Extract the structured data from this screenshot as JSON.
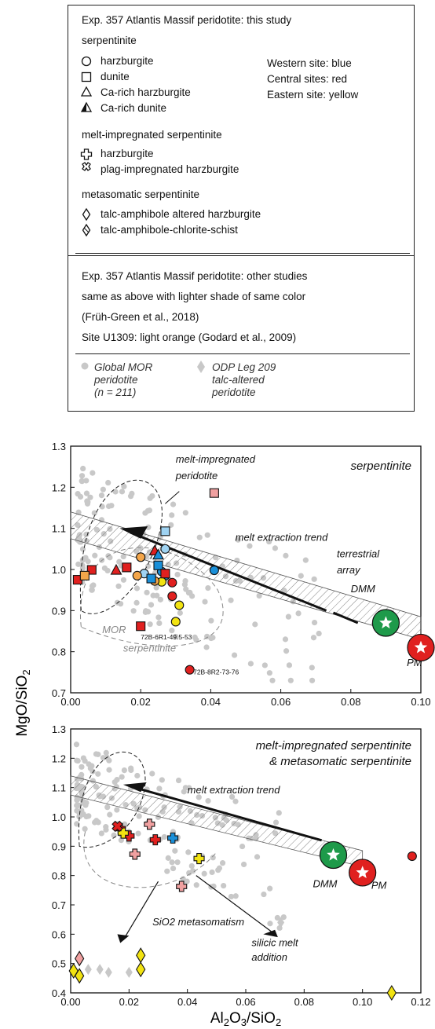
{
  "legend": {
    "title": "Exp. 357 Atlantis Massif peridotite: this study",
    "serp_header": "serpentinite",
    "serp_items": [
      "harzburgite",
      "dunite",
      "Ca-rich harzburgite",
      "Ca-rich dunite"
    ],
    "sites": [
      "Western site: blue",
      "Central sites: red",
      "Eastern site: yellow"
    ],
    "melt_header": "melt-impregnated serpentinite",
    "melt_items": [
      "harzburgite",
      "plag-impregnated harzburgite"
    ],
    "meta_header": "metasomatic serpentinite",
    "meta_items": [
      "talc-amphibole altered harzburgite",
      "talc-amphibole-chlorite-schist"
    ],
    "other_lines": [
      "Exp. 357 Atlantis Massif peridotite: other studies",
      "same as above with lighter shade of same color",
      "(Früh-Green et al., 2018)",
      "Site U1309: light orange (Godard et al., 2009)"
    ],
    "global_label": [
      "Global MOR",
      "peridotite",
      "(n = 211)"
    ],
    "odp_label": [
      "ODP Leg 209",
      "talc-altered",
      "peridotite"
    ]
  },
  "colors": {
    "blue": "#1a8fd8",
    "light_blue": "#9fd3f2",
    "red": "#e0201f",
    "light_red": "#f0a0a0",
    "yellow": "#f2e311",
    "light_orange": "#f4a64a",
    "gray": "#c8c8c8",
    "green": "#1e9a4a",
    "grid": "#e8e8e8"
  },
  "chart_data": [
    {
      "type": "scatter",
      "title": "serpentinite",
      "ylabel": "MgO/SiO2",
      "xlabel": "",
      "xlim": [
        0,
        0.1
      ],
      "ylim": [
        0.7,
        1.3
      ],
      "xticks": [
        "0.00",
        "0.02",
        "0.04",
        "0.06",
        "0.08",
        "0.10"
      ],
      "yticks": [
        "0.7",
        "0.8",
        "0.9",
        "1.0",
        "1.1",
        "1.2",
        "1.3"
      ],
      "annotations": [
        "melt-impregnated",
        "peridotite",
        "melt extraction trend",
        "terrestrial",
        "array",
        "DMM",
        "PM",
        "MOR",
        "serpentinite",
        "72B-6R1-49.5-53",
        "72B-8R2-73-76"
      ],
      "end_members": [
        {
          "name": "DMM",
          "x": 0.09,
          "y": 0.87
        },
        {
          "name": "PM",
          "x": 0.1,
          "y": 0.81
        }
      ],
      "series": [
        {
          "name": "harzburgite (Western, this study)",
          "marker": "circle",
          "color": "blue",
          "points": [
            [
              0.026,
              0.995
            ],
            [
              0.041,
              0.998
            ],
            [
              0.027,
              0.985
            ]
          ]
        },
        {
          "name": "harzburgite (Western, other studies)",
          "marker": "circle",
          "color": "light_blue",
          "points": [
            [
              0.027,
              1.05
            ],
            [
              0.021,
              0.99
            ]
          ]
        },
        {
          "name": "harzburgite (Central)",
          "marker": "circle",
          "color": "red",
          "points": [
            [
              0.029,
              0.935
            ],
            [
              0.034,
              0.756
            ],
            [
              0.029,
              0.968
            ]
          ]
        },
        {
          "name": "harzburgite (Eastern)",
          "marker": "circle",
          "color": "yellow",
          "points": [
            [
              0.031,
              0.913
            ],
            [
              0.03,
              0.873
            ],
            [
              0.026,
              0.97
            ]
          ]
        },
        {
          "name": "harzburgite (Site U1309)",
          "marker": "circle",
          "color": "light_orange",
          "points": [
            [
              0.019,
              0.985
            ],
            [
              0.02,
              1.03
            ],
            [
              0.024,
              0.972
            ]
          ]
        },
        {
          "name": "dunite (Western)",
          "marker": "square",
          "color": "blue",
          "points": [
            [
              0.023,
              0.978
            ],
            [
              0.025,
              1.01
            ]
          ]
        },
        {
          "name": "dunite (Western, other)",
          "marker": "square",
          "color": "light_blue",
          "points": [
            [
              0.027,
              1.093
            ]
          ]
        },
        {
          "name": "dunite (Central)",
          "marker": "square",
          "color": "red",
          "points": [
            [
              0.002,
              0.975
            ],
            [
              0.006,
              0.999
            ],
            [
              0.016,
              1.005
            ],
            [
              0.02,
              0.862
            ],
            [
              0.027,
              0.99
            ]
          ]
        },
        {
          "name": "dunite (Central, other)",
          "marker": "square",
          "color": "light_red",
          "points": [
            [
              0.041,
              1.186
            ]
          ]
        },
        {
          "name": "dunite (Site U1309)",
          "marker": "square",
          "color": "light_orange",
          "points": [
            [
              0.004,
              0.985
            ]
          ]
        },
        {
          "name": "Ca-rich harzburgite",
          "marker": "triangle",
          "color": "red",
          "points": [
            [
              0.013,
              0.998
            ],
            [
              0.024,
              1.045
            ]
          ]
        },
        {
          "name": "Ca-rich dunite",
          "marker": "triangle",
          "color": "blue",
          "points": [
            [
              0.025,
              1.035
            ]
          ]
        }
      ]
    },
    {
      "type": "scatter",
      "title": "melt-impregnated serpentinite & metasomatic serpentinite",
      "ylabel": "MgO/SiO2",
      "xlabel": "Al2O3/SiO2",
      "xlim": [
        0,
        0.12
      ],
      "ylim": [
        0.4,
        1.3
      ],
      "xticks": [
        "0.00",
        "0.02",
        "0.04",
        "0.06",
        "0.08",
        "0.10",
        "0.12"
      ],
      "yticks": [
        "0.4",
        "0.5",
        "0.6",
        "0.7",
        "0.8",
        "0.9",
        "1.0",
        "1.1",
        "1.2",
        "1.3"
      ],
      "annotations": [
        "melt extraction trend",
        "DMM",
        "PM",
        "SiO2 metasomatism",
        "silicic melt",
        "addition"
      ],
      "end_members": [
        {
          "name": "DMM",
          "x": 0.09,
          "y": 0.87
        },
        {
          "name": "PM",
          "x": 0.1,
          "y": 0.81
        }
      ],
      "series": [
        {
          "name": "melt-impregnated harzburgite (Western)",
          "marker": "cross",
          "color": "blue",
          "points": [
            [
              0.035,
              0.928
            ]
          ]
        },
        {
          "name": "melt-impregnated harzburgite (Central)",
          "marker": "cross",
          "color": "red",
          "points": [
            [
              0.02,
              0.935
            ],
            [
              0.029,
              0.922
            ],
            [
              0.017,
              0.96
            ]
          ]
        },
        {
          "name": "melt-impregnated harzburgite (Central, other)",
          "marker": "cross",
          "color": "light_red",
          "points": [
            [
              0.027,
              0.975
            ],
            [
              0.022,
              0.873
            ],
            [
              0.038,
              0.763
            ]
          ]
        },
        {
          "name": "melt-impregnated harzburgite (Eastern)",
          "marker": "cross",
          "color": "yellow",
          "points": [
            [
              0.018,
              0.945
            ],
            [
              0.044,
              0.858
            ]
          ]
        },
        {
          "name": "plag-impregnated harzburgite",
          "marker": "xcross",
          "color": "red",
          "points": [
            [
              0.016,
              0.968
            ]
          ]
        },
        {
          "name": "circle (Central)",
          "marker": "circle",
          "color": "red",
          "points": [
            [
              0.117,
              0.866
            ]
          ]
        },
        {
          "name": "talc-amphibole altered harzburgite (Eastern)",
          "marker": "diamond",
          "color": "yellow",
          "points": [
            [
              0.024,
              0.528
            ],
            [
              0.024,
              0.48
            ],
            [
              0.11,
              0.4
            ]
          ]
        },
        {
          "name": "talc-amphibole altered harzburgite (light)",
          "marker": "diamond",
          "color": "light_red",
          "points": [
            [
              0.003,
              0.517
            ]
          ]
        },
        {
          "name": "talc-amphibole-chlorite-schist",
          "marker": "diamond",
          "color": "yellow",
          "points": [
            [
              0.001,
              0.475
            ],
            [
              0.003,
              0.458
            ]
          ]
        }
      ]
    }
  ]
}
